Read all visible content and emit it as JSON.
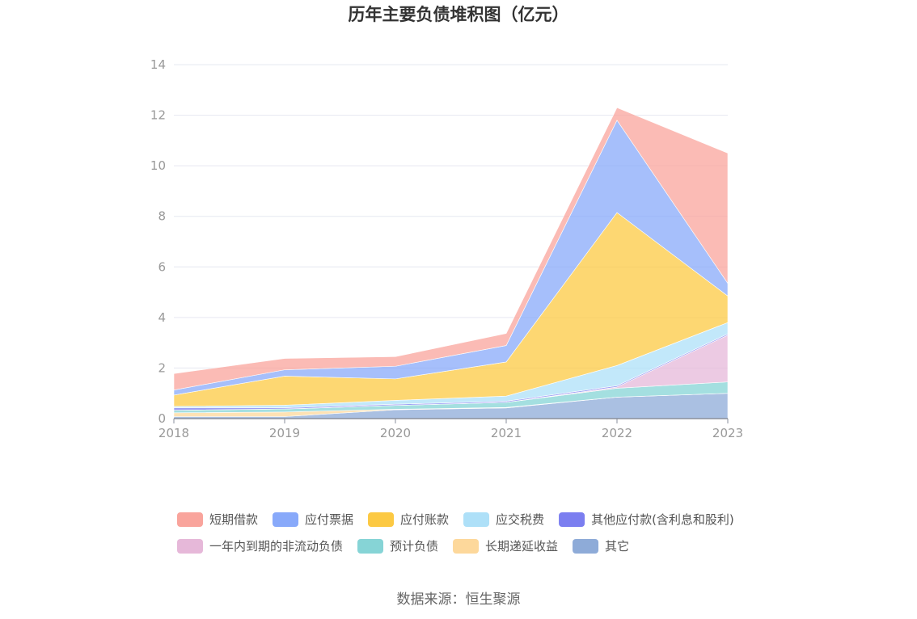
{
  "chart_data": {
    "type": "area",
    "stacked": true,
    "title": "历年主要负债堆积图（亿元）",
    "xlabel": "",
    "ylabel": "",
    "x": [
      "2018",
      "2019",
      "2020",
      "2021",
      "2022",
      "2023"
    ],
    "ylim": [
      0,
      14
    ],
    "yticks": [
      0,
      2,
      4,
      6,
      8,
      10,
      12,
      14
    ],
    "grid": true,
    "legend_position": "bottom",
    "series": [
      {
        "name": "其它",
        "color": "#8eabd8",
        "values": [
          0.08,
          0.08,
          0.35,
          0.42,
          0.85,
          1.0
        ]
      },
      {
        "name": "长期递延收益",
        "color": "#fdd89b",
        "values": [
          0.15,
          0.18,
          0.02,
          0.02,
          0.0,
          0.0
        ]
      },
      {
        "name": "预计负债",
        "color": "#86d4d6",
        "values": [
          0.1,
          0.12,
          0.15,
          0.2,
          0.35,
          0.45
        ]
      },
      {
        "name": "一年内到期的非流动负债",
        "color": "#e6b8d9",
        "values": [
          0.0,
          0.0,
          0.0,
          0.0,
          0.05,
          1.85
        ]
      },
      {
        "name": "其他应付款(含利息和股利)",
        "color": "#7b7ef0",
        "values": [
          0.1,
          0.05,
          0.05,
          0.05,
          0.05,
          0.05
        ]
      },
      {
        "name": "应交税费",
        "color": "#aee0f8",
        "values": [
          0.05,
          0.1,
          0.15,
          0.2,
          0.8,
          0.45
        ]
      },
      {
        "name": "应付账款",
        "color": "#fcc943",
        "values": [
          0.45,
          1.15,
          0.85,
          1.35,
          6.05,
          1.05
        ]
      },
      {
        "name": "应付票据",
        "color": "#88a9fa",
        "values": [
          0.2,
          0.25,
          0.5,
          0.65,
          3.65,
          0.5
        ]
      },
      {
        "name": "短期借款",
        "color": "#f9a49c",
        "values": [
          0.65,
          0.45,
          0.38,
          0.48,
          0.5,
          5.15
        ]
      }
    ],
    "legend_order": [
      "短期借款",
      "应付票据",
      "应付账款",
      "应交税费",
      "其他应付款(含利息和股利)",
      "一年内到期的非流动负债",
      "预计负债",
      "长期递延收益",
      "其它"
    ]
  },
  "source": "数据来源：恒生聚源"
}
